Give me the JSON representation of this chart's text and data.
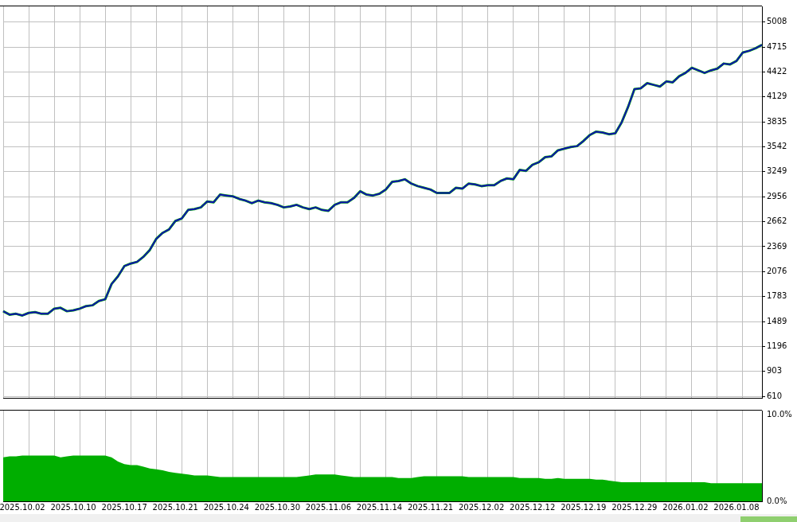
{
  "chart_data": [
    {
      "type": "line",
      "categories": [
        null,
        null,
        null,
        "2025.10.02",
        null,
        null,
        null,
        null,
        null,
        null,
        null,
        "2025.10.10",
        null,
        null,
        null,
        null,
        null,
        null,
        null,
        "2025.10.17",
        null,
        null,
        null,
        null,
        null,
        null,
        null,
        "2025.10.21",
        null,
        null,
        null,
        null,
        null,
        null,
        null,
        "2025.10.24",
        null,
        null,
        null,
        null,
        null,
        null,
        null,
        "2025.10.30",
        null,
        null,
        null,
        null,
        null,
        null,
        null,
        "2025.11.06",
        null,
        null,
        null,
        null,
        null,
        null,
        null,
        "2025.11.14",
        null,
        null,
        null,
        null,
        null,
        null,
        null,
        "2025.11.21",
        null,
        null,
        null,
        null,
        null,
        null,
        null,
        "2025.12.02",
        null,
        null,
        null,
        null,
        null,
        null,
        null,
        "2025.12.12",
        null,
        null,
        null,
        null,
        null,
        null,
        null,
        "2025.12.19",
        null,
        null,
        null,
        null,
        null,
        null,
        null,
        "2025.12.29",
        null,
        null,
        null,
        null,
        null,
        null,
        null,
        "2026.01.02",
        null,
        null,
        null,
        null,
        null,
        null,
        null,
        "2026.01.08",
        null,
        null,
        null,
        null
      ],
      "series": [
        {
          "color": "#00b000",
          "values": [
            1610,
            1570,
            1580,
            1560,
            1590,
            1600,
            1580,
            1580,
            1640,
            1650,
            1610,
            1620,
            1640,
            1670,
            1680,
            1730,
            1750,
            1930,
            2020,
            2140,
            2170,
            2190,
            2250,
            2330,
            2460,
            2530,
            2570,
            2670,
            2700,
            2800,
            2810,
            2830,
            2900,
            2890,
            2980,
            2970,
            2960,
            2930,
            2910,
            2880,
            2910,
            2890,
            2880,
            2860,
            2830,
            2840,
            2860,
            2830,
            2810,
            2830,
            2800,
            2790,
            2860,
            2890,
            2890,
            2940,
            3020,
            2980,
            2970,
            2990,
            3040,
            3130,
            3140,
            3160,
            3110,
            3080,
            3060,
            3040,
            3000,
            3000,
            3000,
            3060,
            3050,
            3110,
            3100,
            3080,
            3090,
            3090,
            3140,
            3170,
            3160,
            3270,
            3260,
            3330,
            3360,
            3420,
            3430,
            3500,
            3520,
            3540,
            3550,
            3610,
            3680,
            3720,
            3710,
            3690,
            3700,
            3830,
            4010,
            4220,
            4230,
            4290,
            4270,
            4250,
            4310,
            4300,
            4370,
            4410,
            4470,
            4440,
            4410,
            4440,
            4460,
            4520,
            4510,
            4550,
            4650,
            4670,
            4700,
            4740
          ]
        },
        {
          "color": "#1010b0",
          "values": [
            1610,
            1570,
            1580,
            1560,
            1590,
            1600,
            1580,
            1580,
            1640,
            1650,
            1610,
            1620,
            1640,
            1670,
            1680,
            1730,
            1750,
            1930,
            2020,
            2140,
            2170,
            2190,
            2250,
            2330,
            2460,
            2530,
            2570,
            2670,
            2700,
            2800,
            2810,
            2830,
            2900,
            2890,
            2980,
            2970,
            2960,
            2930,
            2910,
            2880,
            2910,
            2890,
            2880,
            2860,
            2830,
            2840,
            2860,
            2830,
            2810,
            2830,
            2800,
            2790,
            2860,
            2890,
            2890,
            2940,
            3020,
            2980,
            2970,
            2990,
            3040,
            3130,
            3140,
            3160,
            3110,
            3080,
            3060,
            3040,
            3000,
            3000,
            3000,
            3060,
            3050,
            3110,
            3100,
            3080,
            3090,
            3090,
            3140,
            3170,
            3160,
            3270,
            3260,
            3330,
            3360,
            3420,
            3430,
            3500,
            3520,
            3540,
            3550,
            3610,
            3680,
            3720,
            3710,
            3690,
            3700,
            3830,
            4010,
            4220,
            4230,
            4290,
            4270,
            4250,
            4310,
            4300,
            4370,
            4410,
            4470,
            4440,
            4410,
            4440,
            4460,
            4520,
            4510,
            4550,
            4650,
            4670,
            4700,
            4740
          ]
        }
      ],
      "ylim": [
        592,
        5192
      ],
      "yticks": [
        610,
        903,
        1196,
        1489,
        1783,
        2076,
        2369,
        2662,
        2956,
        3249,
        3542,
        3835,
        4129,
        4422,
        4715,
        5008
      ],
      "grid": true,
      "legend": false,
      "marker": "none",
      "line_style": "solid",
      "tick_labels": "y"
    },
    {
      "type": "area",
      "categories": [
        null,
        null,
        null,
        "2025.10.02",
        null,
        null,
        null,
        null,
        null,
        null,
        null,
        "2025.10.10",
        null,
        null,
        null,
        null,
        null,
        null,
        null,
        "2025.10.17",
        null,
        null,
        null,
        null,
        null,
        null,
        null,
        "2025.10.21",
        null,
        null,
        null,
        null,
        null,
        null,
        null,
        "2025.10.24",
        null,
        null,
        null,
        null,
        null,
        null,
        null,
        "2025.10.30",
        null,
        null,
        null,
        null,
        null,
        null,
        null,
        "2025.11.06",
        null,
        null,
        null,
        null,
        null,
        null,
        null,
        "2025.11.14",
        null,
        null,
        null,
        null,
        null,
        null,
        null,
        "2025.11.21",
        null,
        null,
        null,
        null,
        null,
        null,
        null,
        "2025.12.02",
        null,
        null,
        null,
        null,
        null,
        null,
        null,
        "2025.12.12",
        null,
        null,
        null,
        null,
        null,
        null,
        null,
        "2025.12.19",
        null,
        null,
        null,
        null,
        null,
        null,
        null,
        "2025.12.29",
        null,
        null,
        null,
        null,
        null,
        null,
        null,
        "2026.01.02",
        null,
        null,
        null,
        null,
        null,
        null,
        null,
        "2026.01.08",
        null,
        null,
        null,
        null
      ],
      "series": [
        {
          "color": "#00ae00",
          "values": [
            5.1,
            5.2,
            5.2,
            5.3,
            5.3,
            5.3,
            5.3,
            5.3,
            5.3,
            5.1,
            5.2,
            5.3,
            5.3,
            5.3,
            5.3,
            5.3,
            5.3,
            5.1,
            4.6,
            4.3,
            4.2,
            4.2,
            4.0,
            3.8,
            3.7,
            3.6,
            3.4,
            3.3,
            3.2,
            3.1,
            3.0,
            3.0,
            3.0,
            2.9,
            2.8,
            2.8,
            2.8,
            2.8,
            2.8,
            2.8,
            2.8,
            2.8,
            2.8,
            2.8,
            2.8,
            2.8,
            2.8,
            2.9,
            3.0,
            3.1,
            3.1,
            3.1,
            3.1,
            3.0,
            2.9,
            2.8,
            2.8,
            2.8,
            2.8,
            2.8,
            2.8,
            2.8,
            2.7,
            2.7,
            2.7,
            2.8,
            2.9,
            2.9,
            2.9,
            2.9,
            2.9,
            2.9,
            2.9,
            2.8,
            2.8,
            2.8,
            2.8,
            2.8,
            2.8,
            2.8,
            2.8,
            2.7,
            2.7,
            2.7,
            2.7,
            2.6,
            2.6,
            2.7,
            2.6,
            2.6,
            2.6,
            2.6,
            2.6,
            2.5,
            2.5,
            2.4,
            2.3,
            2.2,
            2.2,
            2.2,
            2.2,
            2.2,
            2.2,
            2.2,
            2.2,
            2.2,
            2.2,
            2.2,
            2.2,
            2.2,
            2.2,
            2.1,
            2.1,
            2.1,
            2.1,
            2.1,
            2.1,
            2.1,
            2.1,
            2.1
          ]
        }
      ],
      "ylim": [
        0,
        10.5
      ],
      "yticks": [
        {
          "value": 10,
          "label": "10.0%"
        },
        {
          "value": 0,
          "label": "0.0%"
        }
      ],
      "grid": "x",
      "legend": false
    }
  ]
}
